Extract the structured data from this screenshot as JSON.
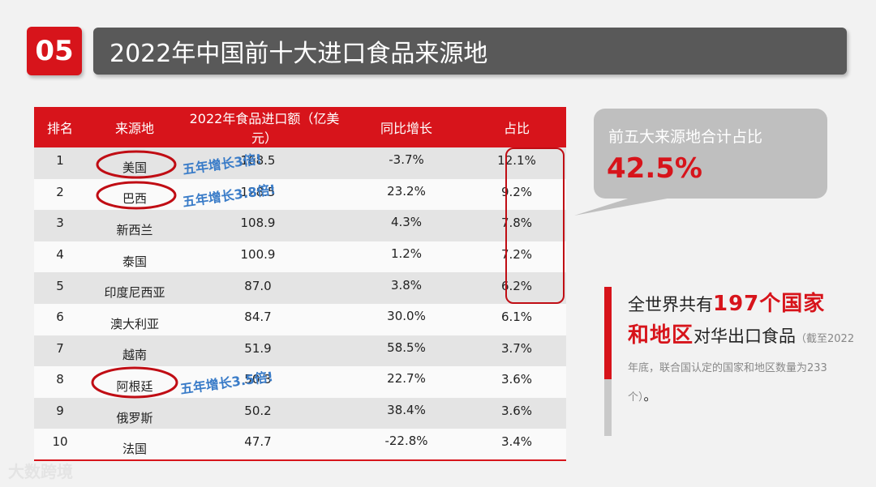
{
  "header": {
    "number": "05",
    "title": "2022年中国前十大进口食品来源地"
  },
  "table": {
    "columns": [
      "排名",
      "来源地",
      "2022年食品进口额（亿美元）",
      "同比增长",
      "占比"
    ],
    "rows": [
      {
        "rank": "1",
        "source": "美国",
        "value": "168.5",
        "growth": "-3.7%",
        "share": "12.1%"
      },
      {
        "rank": "2",
        "source": "巴西",
        "value": "128.5",
        "growth": "23.2%",
        "share": "9.2%"
      },
      {
        "rank": "3",
        "source": "新西兰",
        "value": "108.9",
        "growth": "4.3%",
        "share": "7.8%"
      },
      {
        "rank": "4",
        "source": "泰国",
        "value": "100.9",
        "growth": "1.2%",
        "share": "7.2%"
      },
      {
        "rank": "5",
        "source": "印度尼西亚",
        "value": "87.0",
        "growth": "3.8%",
        "share": "6.2%"
      },
      {
        "rank": "6",
        "source": "澳大利亚",
        "value": "84.7",
        "growth": "30.0%",
        "share": "6.1%"
      },
      {
        "rank": "7",
        "source": "越南",
        "value": "51.9",
        "growth": "58.5%",
        "share": "3.7%"
      },
      {
        "rank": "8",
        "source": "阿根廷",
        "value": "50.3",
        "growth": "22.7%",
        "share": "3.6%"
      },
      {
        "rank": "9",
        "source": "俄罗斯",
        "value": "50.2",
        "growth": "38.4%",
        "share": "3.6%"
      },
      {
        "rank": "10",
        "source": "法国",
        "value": "47.7",
        "growth": "-22.8%",
        "share": "3.4%"
      }
    ]
  },
  "annotations": {
    "usa_note": "五年增长3倍!",
    "brazil_note": "五年增长3.8倍!",
    "argentina_note": "五年增长3.5倍!"
  },
  "callout": {
    "label": "前五大来源地合计占比",
    "value": "42.5%"
  },
  "info": {
    "line1_prefix": "全世界共有",
    "line1_highlight": "197个国家",
    "line2_highlight": "和地区",
    "line2_suffix": "对华出口食品",
    "note": "（截至2022年底，联合国认定的国家和地区数量为233个）",
    "end": "。"
  },
  "watermark": "大数跨境",
  "colors": {
    "accent": "#d7141b",
    "title_bar": "#595959",
    "note_blue": "#3a7cc8",
    "bubble": "#bfbfbf"
  }
}
